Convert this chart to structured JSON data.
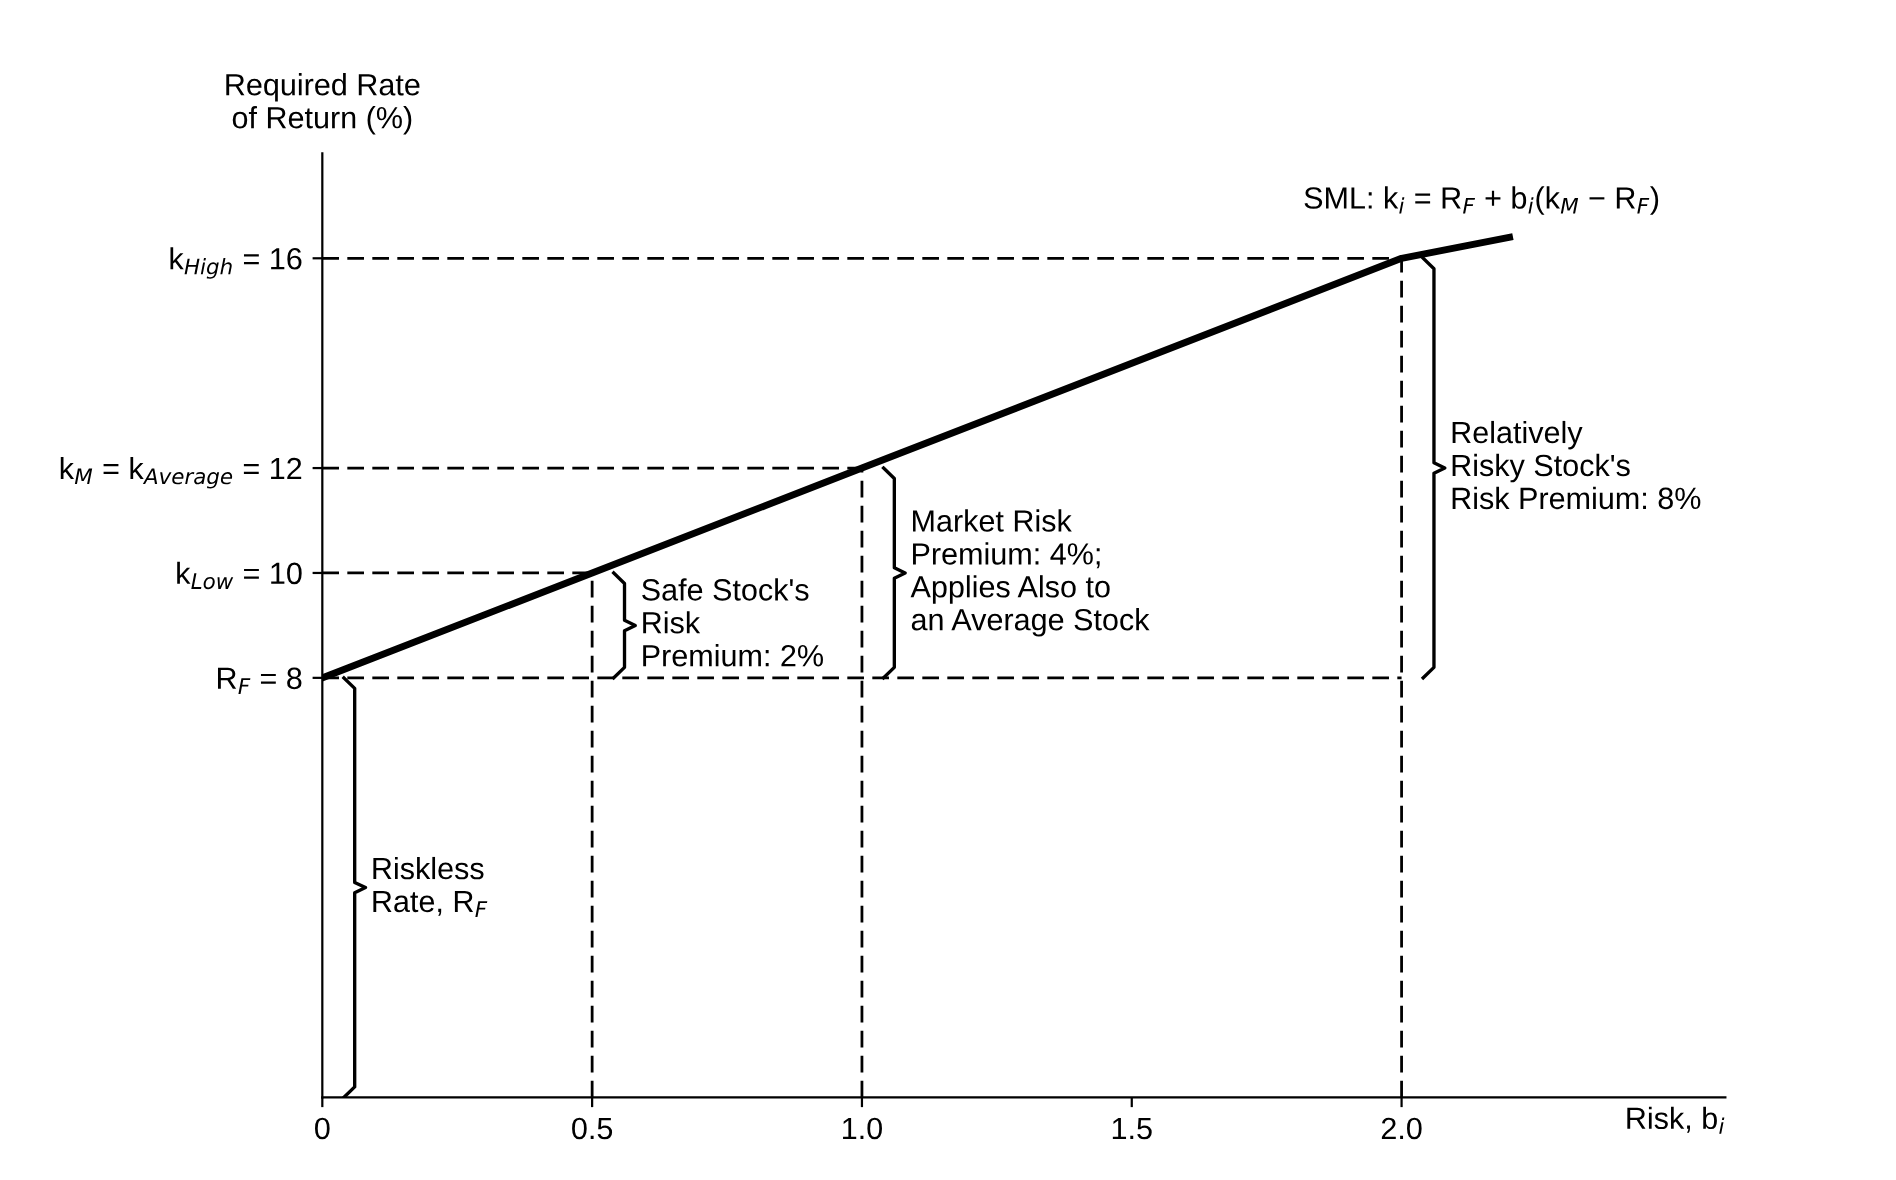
{
  "chart_data": {
    "type": "line",
    "xlabel": "Risk, b$_{i}$",
    "ylabel": "Required Rate\nof Return (%)",
    "x": [
      0,
      0.5,
      1.0,
      2.0,
      2.2
    ],
    "series": [
      {
        "name": "SML: k$_{i}$ = R$_{F}$ + b$_{i}$(k$_{M}$ − R$_{F}$)",
        "color": "#000000",
        "values": [
          8,
          10,
          12,
          16,
          16.4
        ]
      }
    ],
    "xlim": [
      0,
      2.6
    ],
    "ylim": [
      0,
      18
    ],
    "xticks": [
      0,
      {
        "value": 0.5,
        "label": "0.5"
      },
      {
        "value": 1.0,
        "label": "1.0"
      },
      {
        "value": 1.5,
        "label": "1.5"
      },
      {
        "value": 2.0,
        "label": "2.0"
      }
    ],
    "yticks": [
      {
        "value": 8,
        "label": "R$_{F}$ = 8"
      },
      {
        "value": 10,
        "label": "k$_{Low}$ = 10"
      },
      {
        "value": 12,
        "label": "k$_{M}$ = k$_{Average}$ = 12"
      },
      {
        "value": 16,
        "label": "k$_{High}$ = 16"
      }
    ],
    "ref_lines": [
      {
        "axis": "y",
        "value": 8,
        "line_style": "dashed"
      },
      {
        "axis": "y",
        "value": 10,
        "line_style": "dashed"
      },
      {
        "axis": "y",
        "value": 12,
        "line_style": "dashed"
      },
      {
        "axis": "y",
        "value": 16,
        "line_style": "dashed"
      },
      {
        "axis": "x",
        "value": 0.5,
        "line_style": "dashed"
      },
      {
        "axis": "x",
        "value": 1.0,
        "line_style": "dashed"
      },
      {
        "axis": "x",
        "value": 2.0,
        "line_style": "dashed"
      }
    ],
    "annotations": [
      "Riskless\nRate, R$_{F}$",
      {
        "text": "Safe Stock's\nRisk\nPremium: 2%",
        "x": 0.5,
        "y": 9
      },
      {
        "text": "Market Risk\nPremium: 4%;\nApplies Also to\nan Average Stock",
        "x": 1.0,
        "y": 10
      },
      {
        "text": "Relatively\nRisky Stock's\nRisk Premium: 8%",
        "x": 2.0,
        "y": 12
      }
    ],
    "grid": false,
    "legend": false,
    "marker": "none",
    "line_style": "solid"
  }
}
